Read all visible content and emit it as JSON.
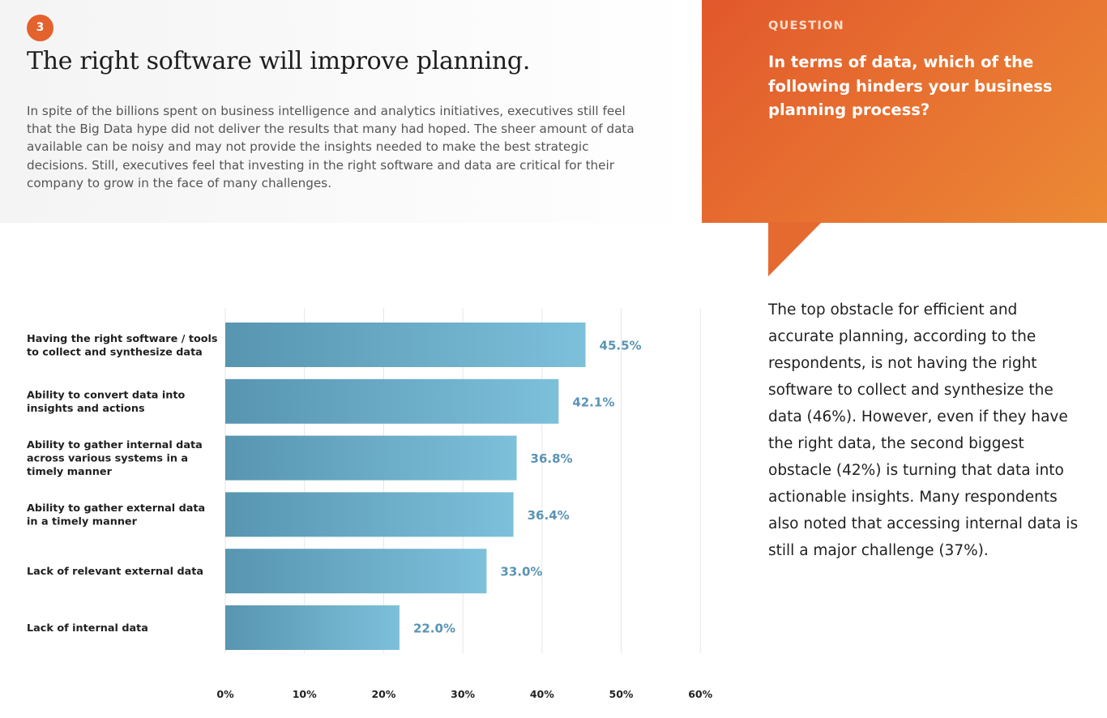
{
  "header": {
    "section_number": "3",
    "title": "The right software will improve planning.",
    "body": "In spite of the billions spent on business intelligence and analytics initiatives, executives still feel that the Big Data hype did not deliver the results that many had hoped. The sheer amount of data available can be noisy and may not provide the insights needed to make the best strategic decisions. Still, executives feel that investing in the right software and data are critical for their company to grow in the face of many challenges."
  },
  "question": {
    "label": "QUESTION",
    "text": "In terms of data, which of the following hinders your business planning process?"
  },
  "finding": "The top obstacle for efficient and accurate planning, according to the respondents, is not having the right software to collect and synthesize the data (46%). However, even if they have the right data, the second biggest obstacle (42%) is turning that data into actionable insights. Many respondents also noted that accessing internal data is still a major challenge (37%).",
  "colors": {
    "accent": "#e4622e",
    "bar_start": "#5795b0",
    "bar_end": "#7dc0da",
    "value_label": "#5a94b4"
  },
  "chart_data": {
    "type": "bar",
    "orientation": "horizontal",
    "categories": [
      [
        "Having the right software / tools",
        "to collect and synthesize data"
      ],
      [
        "Ability to convert data into",
        "insights and actions"
      ],
      [
        "Ability to gather internal data",
        "across various systems in a",
        "timely manner"
      ],
      [
        "Ability to gather external data",
        "in a timely manner"
      ],
      [
        "Lack of relevant external data"
      ],
      [
        "Lack of internal data"
      ]
    ],
    "values": [
      45.5,
      42.1,
      36.8,
      36.4,
      33.0,
      22.0
    ],
    "value_labels": [
      "45.5%",
      "42.1%",
      "36.8%",
      "36.4%",
      "33.0%",
      "22.0%"
    ],
    "xlim": [
      0,
      60
    ],
    "xticks": [
      0,
      10,
      20,
      30,
      40,
      50,
      60
    ],
    "xtick_labels": [
      "0%",
      "10%",
      "20%",
      "30%",
      "40%",
      "50%",
      "60%"
    ],
    "grid": true,
    "legend": "none"
  }
}
